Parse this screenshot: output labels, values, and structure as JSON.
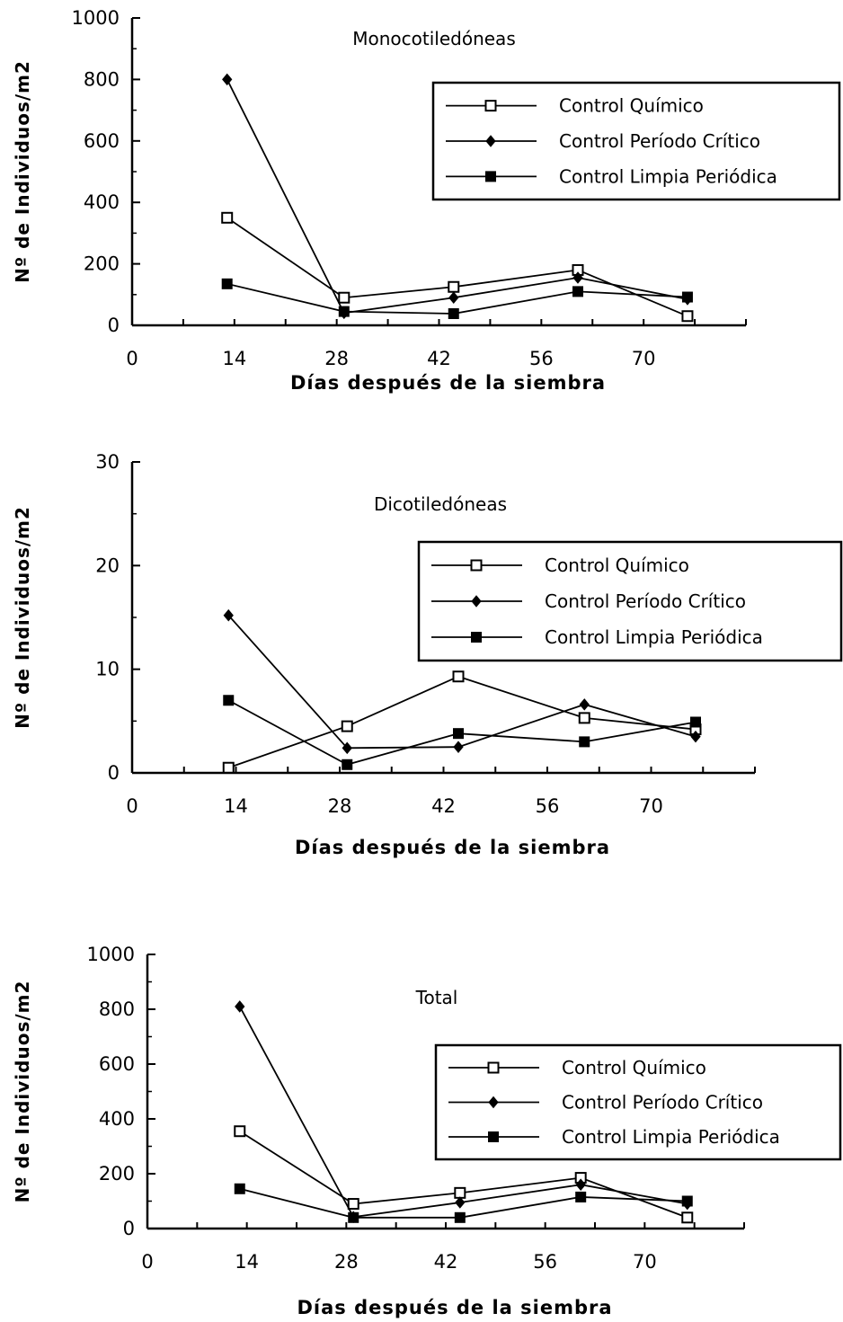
{
  "chart_data": [
    {
      "type": "line",
      "title": "Monocotiledóneas",
      "xlabel": "Días después de la siembra",
      "ylabel": "Nº de Individuos/m2",
      "xlim": [
        0,
        84
      ],
      "ylim": [
        0,
        1000
      ],
      "x_ticks": [
        "0",
        "14",
        "28",
        "42",
        "56",
        "70"
      ],
      "y_ticks": [
        "0",
        "200",
        "400",
        "600",
        "800",
        "1000"
      ],
      "legend_position": "top-right",
      "series": [
        {
          "name": "Control Químico",
          "marker": "open-square",
          "x": [
            13,
            29,
            44,
            61,
            76
          ],
          "values": [
            350,
            90,
            125,
            180,
            30
          ]
        },
        {
          "name": "Control Período Crítico",
          "marker": "diamond",
          "x": [
            13,
            29,
            44,
            61,
            76
          ],
          "values": [
            800,
            40,
            90,
            155,
            85
          ]
        },
        {
          "name": "Control Limpia Periódica",
          "marker": "filled-square",
          "x": [
            13,
            29,
            44,
            61,
            76
          ],
          "values": [
            135,
            45,
            38,
            110,
            92
          ]
        }
      ]
    },
    {
      "type": "line",
      "title": "Dicotiledóneas",
      "xlabel": "Días después de la siembra",
      "ylabel": "Nº de Individuos/m2",
      "xlim": [
        0,
        84
      ],
      "ylim": [
        0,
        30
      ],
      "x_ticks": [
        "0",
        "14",
        "28",
        "42",
        "56",
        "70"
      ],
      "y_ticks": [
        "0",
        "10",
        "20",
        "30"
      ],
      "legend_position": "center-right",
      "series": [
        {
          "name": "Control Químico",
          "marker": "open-square",
          "x": [
            13,
            29,
            44,
            61,
            76
          ],
          "values": [
            0.5,
            4.5,
            9.3,
            5.3,
            4.2
          ]
        },
        {
          "name": "Control Período Crítico",
          "marker": "diamond",
          "x": [
            13,
            29,
            44,
            61,
            76
          ],
          "values": [
            15.2,
            2.4,
            2.5,
            6.6,
            3.5
          ]
        },
        {
          "name": "Control Limpia Periódica",
          "marker": "filled-square",
          "x": [
            13,
            29,
            44,
            61,
            76
          ],
          "values": [
            7.0,
            0.8,
            3.8,
            3.0,
            4.9
          ]
        }
      ]
    },
    {
      "type": "line",
      "title": "Total",
      "xlabel": "Días después de la siembra",
      "ylabel": "Nº de Individuos/m2",
      "xlim": [
        0,
        84
      ],
      "ylim": [
        0,
        1000
      ],
      "x_ticks": [
        "0",
        "14",
        "28",
        "42",
        "56",
        "70"
      ],
      "y_ticks": [
        "0",
        "200",
        "400",
        "600",
        "800",
        "1000"
      ],
      "legend_position": "center-right",
      "series": [
        {
          "name": "Control Químico",
          "marker": "open-square",
          "x": [
            13,
            29,
            44,
            61,
            76
          ],
          "values": [
            355,
            90,
            130,
            185,
            40
          ]
        },
        {
          "name": "Control Período Crítico",
          "marker": "diamond",
          "x": [
            13,
            29,
            44,
            61,
            76
          ],
          "values": [
            810,
            42,
            95,
            160,
            90
          ]
        },
        {
          "name": "Control Limpia Periódica",
          "marker": "filled-square",
          "x": [
            13,
            29,
            44,
            61,
            76
          ],
          "values": [
            145,
            40,
            40,
            115,
            100
          ]
        }
      ]
    }
  ]
}
